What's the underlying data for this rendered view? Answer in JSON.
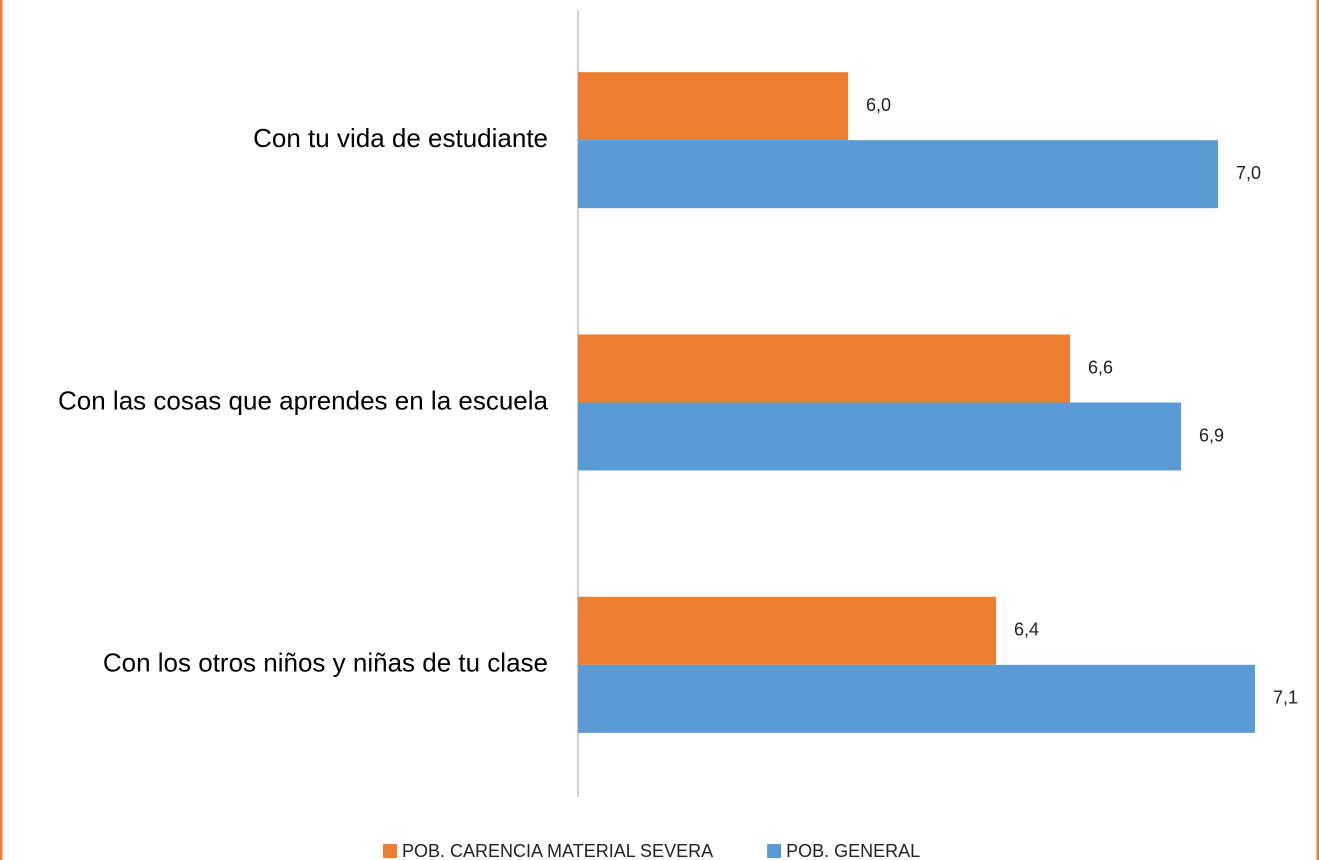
{
  "chart_data": {
    "type": "bar",
    "orientation": "horizontal",
    "categories": [
      "Con tu vida de estudiante",
      "Con las cosas que aprendes en la escuela",
      "Con los otros niños y niñas de tu clase"
    ],
    "series": [
      {
        "name": "POB. CARENCIA MATERIAL SEVERA",
        "color": "#ED7D31",
        "values": [
          6.0,
          6.6,
          6.4
        ],
        "value_labels": [
          "6,0",
          "6,6",
          "6,4"
        ]
      },
      {
        "name": "POB. GENERAL",
        "color": "#5B9BD5",
        "values": [
          7.0,
          6.9,
          7.1
        ],
        "value_labels": [
          "7,0",
          "6,9",
          "7,1"
        ]
      }
    ],
    "xlim": [
      5.27,
      7.2
    ],
    "legend": "bottom"
  }
}
